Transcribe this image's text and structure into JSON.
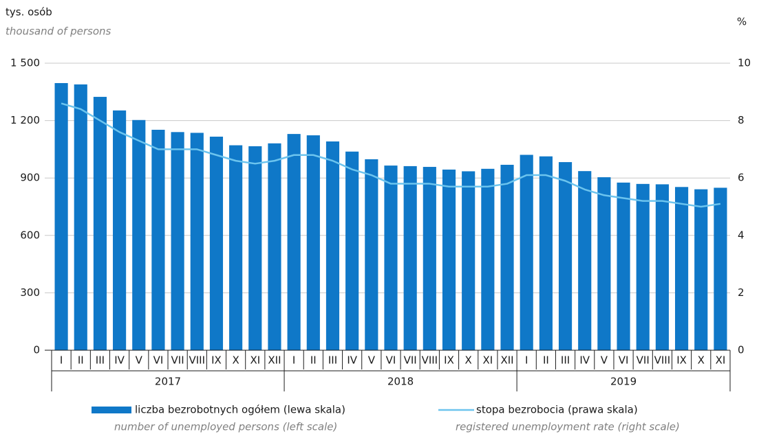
{
  "chart_data": {
    "type": "bar_line",
    "y_label": "tys. osób",
    "y_label_en": "thousand of persons",
    "y2_label": "%",
    "categories": [
      "I",
      "II",
      "III",
      "IV",
      "V",
      "VI",
      "VII",
      "VIII",
      "IX",
      "X",
      "XI",
      "XII",
      "I",
      "II",
      "III",
      "IV",
      "V",
      "VI",
      "VII",
      "VIII",
      "IX",
      "X",
      "XI",
      "XII",
      "I",
      "II",
      "III",
      "IV",
      "V",
      "VI",
      "VII",
      "VIII",
      "IX",
      "X",
      "XI"
    ],
    "years": [
      "2017",
      "2018",
      "2019"
    ],
    "series": [
      {
        "name": "liczba bezrobotnych ogółem (lewa skala)",
        "name_en": "number of unemployed persons (left scale)",
        "type": "bar",
        "color": "#0f78c8",
        "axis": "y",
        "values": [
          1396,
          1389,
          1324,
          1253,
          1203,
          1152,
          1140,
          1136,
          1116,
          1071,
          1066,
          1081,
          1130,
          1123,
          1091,
          1038,
          998,
          965,
          962,
          958,
          944,
          935,
          948,
          969,
          1021,
          1013,
          983,
          936,
          904,
          876,
          869,
          867,
          853,
          841,
          849
        ]
      },
      {
        "name": "stopa bezrobocia (prawa skala)",
        "name_en": "registered unemployment rate (right scale)",
        "type": "line",
        "color": "#6cc4ee",
        "axis": "y2",
        "values": [
          8.6,
          8.4,
          8.0,
          7.6,
          7.3,
          7.0,
          7.0,
          7.0,
          6.8,
          6.6,
          6.5,
          6.6,
          6.8,
          6.8,
          6.6,
          6.3,
          6.1,
          5.8,
          5.8,
          5.8,
          5.7,
          5.7,
          5.7,
          5.8,
          6.1,
          6.1,
          5.9,
          5.6,
          5.4,
          5.3,
          5.2,
          5.2,
          5.1,
          5.0,
          5.1
        ]
      }
    ],
    "ylim": [
      0,
      1500
    ],
    "yticks": [
      0,
      300,
      600,
      900,
      {
        "value": 1200,
        "label": "1 200"
      },
      {
        "value": 1500,
        "label": "1 500"
      }
    ],
    "y2lim": [
      0,
      10
    ],
    "y2ticks": [
      0,
      2,
      4,
      6,
      8,
      10
    ],
    "grid": true
  }
}
